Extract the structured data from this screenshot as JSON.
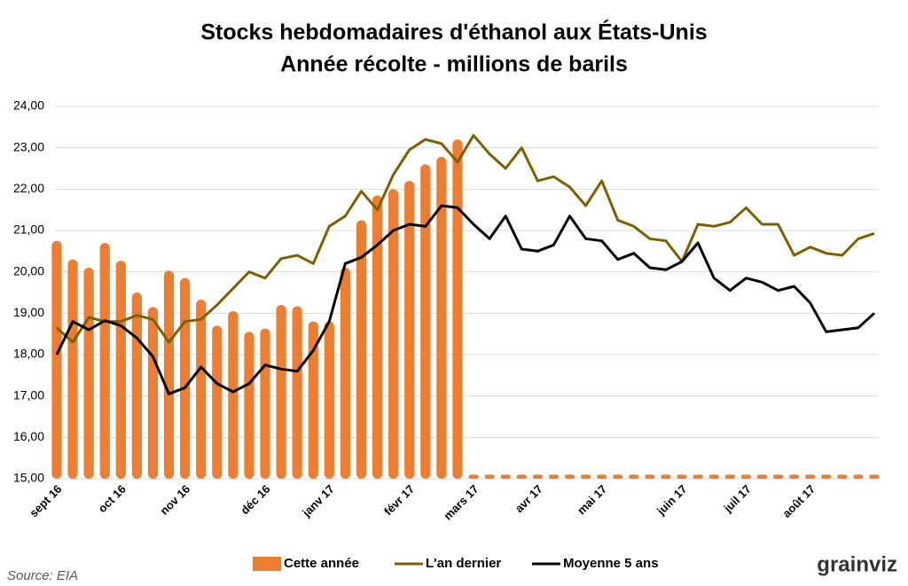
{
  "chart_data": {
    "type": "bar-line",
    "title": "Stocks hebdomadaires d'éthanol aux États-Unis",
    "subtitle": "Année récolte - millions de barils",
    "source": "Source: EIA",
    "logo": "grainviz",
    "categories": [
      "sept 16",
      null,
      null,
      null,
      "oct 16",
      null,
      null,
      null,
      "nov 16",
      null,
      null,
      null,
      null,
      "déc 16",
      null,
      null,
      null,
      "janv 17",
      null,
      null,
      null,
      null,
      "févr 17",
      null,
      null,
      null,
      "mars 17",
      null,
      null,
      null,
      "avr 17",
      null,
      null,
      null,
      "mai 17",
      null,
      null,
      null,
      null,
      "juin 17",
      null,
      null,
      null,
      "juil 17",
      null,
      null,
      null,
      "août 17",
      null,
      null,
      null,
      null
    ],
    "series": [
      {
        "name": "Cette année",
        "kind": "bar",
        "color": "#ed7d31",
        "values": [
          20.75,
          20.3,
          20.1,
          20.7,
          20.27,
          19.5,
          19.15,
          20.03,
          19.85,
          19.33,
          18.7,
          19.05,
          18.55,
          18.63,
          19.2,
          19.17,
          18.8,
          18.8,
          20.1,
          21.25,
          21.85,
          22.0,
          22.2,
          22.6,
          22.78,
          23.2,
          15.1,
          15.1,
          15.1,
          15.1,
          15.1,
          15.1,
          15.1,
          15.1,
          15.1,
          15.1,
          15.1,
          15.1,
          15.1,
          15.1,
          15.1,
          15.1,
          15.1,
          15.1,
          15.1,
          15.1,
          15.1,
          15.1,
          15.1,
          15.1,
          15.1,
          15.1
        ]
      },
      {
        "name": "L'an dernier",
        "kind": "line",
        "color": "#7f6000",
        "values": [
          18.65,
          18.3,
          18.9,
          18.8,
          18.8,
          18.95,
          18.85,
          18.3,
          18.8,
          18.85,
          19.2,
          19.6,
          20.0,
          19.85,
          20.32,
          20.4,
          20.2,
          21.1,
          21.35,
          21.95,
          21.5,
          22.35,
          22.95,
          23.2,
          23.1,
          22.65,
          23.3,
          22.85,
          22.5,
          23.0,
          22.2,
          22.3,
          22.05,
          21.6,
          22.2,
          21.25,
          21.1,
          20.8,
          20.75,
          20.25,
          21.15,
          21.1,
          21.2,
          21.55,
          21.15,
          21.15,
          20.4,
          20.6,
          20.45,
          20.4,
          20.8,
          20.93
        ]
      },
      {
        "name": "Moyenne 5 ans",
        "kind": "line",
        "color": "#000000",
        "values": [
          18.0,
          18.8,
          18.6,
          18.82,
          18.7,
          18.4,
          17.95,
          17.05,
          17.2,
          17.7,
          17.3,
          17.1,
          17.3,
          17.75,
          17.65,
          17.6,
          18.1,
          18.8,
          20.2,
          20.35,
          20.65,
          21.0,
          21.15,
          21.1,
          21.6,
          21.55,
          21.15,
          20.8,
          21.35,
          20.55,
          20.5,
          20.65,
          21.35,
          20.8,
          20.75,
          20.3,
          20.45,
          20.1,
          20.05,
          20.25,
          20.7,
          19.85,
          19.55,
          19.85,
          19.75,
          19.55,
          19.65,
          19.25,
          18.55,
          18.6,
          18.65,
          19.0
        ]
      }
    ],
    "ylim": [
      15,
      24
    ],
    "yticks": [
      {
        "value": 15,
        "label": "15,00"
      },
      {
        "value": 16,
        "label": "16,00"
      },
      {
        "value": 17,
        "label": "17,00"
      },
      {
        "value": 18,
        "label": "18,00"
      },
      {
        "value": 19,
        "label": "19,00"
      },
      {
        "value": 20,
        "label": "20,00"
      },
      {
        "value": 21,
        "label": "21,00"
      },
      {
        "value": 22,
        "label": "22,00"
      },
      {
        "value": 23,
        "label": "23,00"
      },
      {
        "value": 24,
        "label": "24,00"
      }
    ],
    "grid": true,
    "legend": "bottom"
  }
}
